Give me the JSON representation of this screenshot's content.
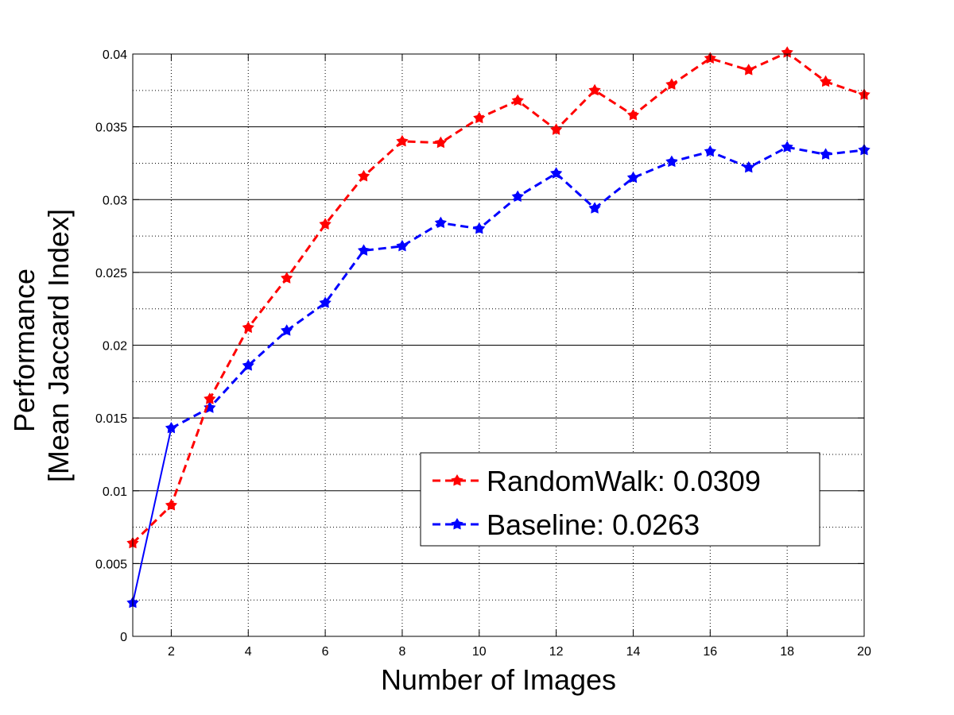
{
  "chart_data": {
    "type": "line",
    "x": [
      1,
      2,
      3,
      4,
      5,
      6,
      7,
      8,
      9,
      10,
      11,
      12,
      13,
      14,
      15,
      16,
      17,
      18,
      19,
      20
    ],
    "series": [
      {
        "name": "RandomWalk: 0.0309",
        "color": "#ff0000",
        "marker": "star",
        "values": [
          0.0064,
          0.009,
          0.0163,
          0.0212,
          0.0246,
          0.0283,
          0.0316,
          0.034,
          0.0339,
          0.0356,
          0.0368,
          0.0348,
          0.0375,
          0.0358,
          0.0379,
          0.0397,
          0.0389,
          0.0401,
          0.0381,
          0.0372
        ]
      },
      {
        "name": "Baseline: 0.0263",
        "color": "#0000ff",
        "marker": "star",
        "values": [
          0.0023,
          0.0143,
          0.0157,
          0.0186,
          0.021,
          0.0229,
          0.0265,
          0.0268,
          0.0284,
          0.028,
          0.0302,
          0.0318,
          0.0294,
          0.0315,
          0.0326,
          0.0333,
          0.0322,
          0.0336,
          0.0331,
          0.0334
        ]
      }
    ],
    "xlabel": "Number of Images",
    "ylabel_line1": "Performance",
    "ylabel_line2": "[Mean Jaccard Index]",
    "xlim": [
      1,
      20
    ],
    "ylim": [
      0,
      0.04
    ],
    "xticks": [
      2,
      4,
      6,
      8,
      10,
      12,
      14,
      16,
      18,
      20
    ],
    "xtick_labels": [
      "2",
      "4",
      "6",
      "8",
      "10",
      "12",
      "14",
      "16",
      "18",
      "20"
    ],
    "yticks": [
      0,
      0.005,
      0.01,
      0.015,
      0.02,
      0.025,
      0.03,
      0.035,
      0.04
    ],
    "ytick_labels": [
      "0",
      "0.005",
      "0.01",
      "0.015",
      "0.02",
      "0.025",
      "0.03",
      "0.035",
      "0.04"
    ],
    "grid": "on",
    "legend_position": "lower-right"
  }
}
